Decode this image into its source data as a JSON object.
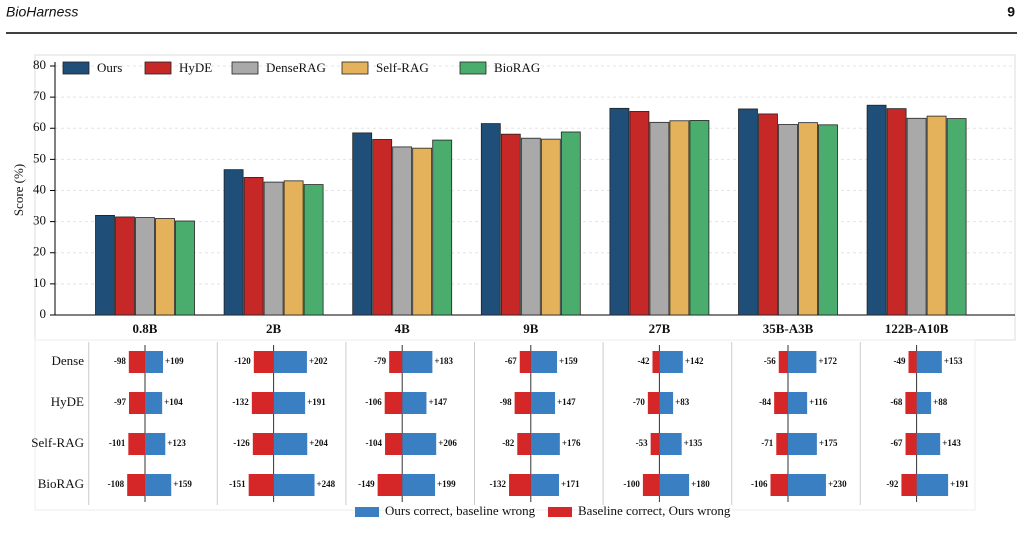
{
  "header": {
    "title": "BioHarness",
    "page": "9"
  },
  "chart_data": [
    {
      "type": "bar",
      "ylabel": "Score (%)",
      "categories": [
        "0.8B",
        "2B",
        "4B",
        "9B",
        "27B",
        "35B-A3B",
        "122B-A10B"
      ],
      "series": [
        {
          "name": "Ours",
          "color": "#1f4e79",
          "values": [
            32,
            46.7,
            58.5,
            61.5,
            66.4,
            66.2,
            67.4
          ]
        },
        {
          "name": "HyDE",
          "color": "#c62828",
          "values": [
            31.5,
            44.2,
            56.4,
            58.1,
            65.4,
            64.6,
            66.3
          ]
        },
        {
          "name": "DenseRAG",
          "color": "#a9a9a9",
          "values": [
            31.3,
            42.7,
            54,
            56.8,
            61.9,
            61.2,
            63.2
          ]
        },
        {
          "name": "Self-RAG",
          "color": "#e3b25a",
          "values": [
            31,
            43.1,
            53.6,
            56.5,
            62.4,
            61.8,
            63.9
          ]
        },
        {
          "name": "BioRAG",
          "color": "#4aad6e",
          "values": [
            30.2,
            41.9,
            56.2,
            58.8,
            62.5,
            61.1,
            63.1
          ]
        }
      ],
      "ylim": [
        0,
        80
      ],
      "yticks": [
        0,
        10,
        20,
        30,
        40,
        50,
        60,
        70,
        80
      ],
      "grid": true,
      "legend": "top-left"
    },
    {
      "type": "diverging-bar",
      "categories": [
        "Dense",
        "HyDE",
        "Self-RAG",
        "BioRAG"
      ],
      "series": [
        {
          "name": "Ours correct, baseline wrong",
          "color": "#3a7fc1",
          "values": [
            [
              109,
              202,
              183,
              159,
              142,
              172,
              153
            ],
            [
              104,
              191,
              147,
              147,
              83,
              116,
              88
            ],
            [
              123,
              204,
              206,
              176,
              135,
              175,
              143
            ],
            [
              159,
              248,
              199,
              171,
              180,
              230,
              191
            ]
          ],
          "value_labels": [
            [
              "+109",
              "+202",
              "+183",
              "+159",
              "+142",
              "+172",
              "+153"
            ],
            [
              "+104",
              "+191",
              "+147",
              "+147",
              "+83",
              "+116",
              "+88"
            ],
            [
              "+123",
              "+204",
              "+206",
              "+176",
              "+135",
              "+175",
              "+143"
            ],
            [
              "+159",
              "+248",
              "+199",
              "+171",
              "+180",
              "+230",
              "+191"
            ]
          ]
        },
        {
          "name": "Baseline correct, Ours wrong",
          "color": "#d62728",
          "values": [
            [
              -98,
              -120,
              -79,
              -67,
              -42,
              -56,
              -49
            ],
            [
              -97,
              -132,
              -106,
              -98,
              -70,
              -84,
              -68
            ],
            [
              -101,
              -126,
              -104,
              -82,
              -53,
              -71,
              -67
            ],
            [
              -108,
              -151,
              -149,
              -132,
              -100,
              -106,
              -92
            ]
          ]
        }
      ],
      "legend": "bottom"
    }
  ]
}
